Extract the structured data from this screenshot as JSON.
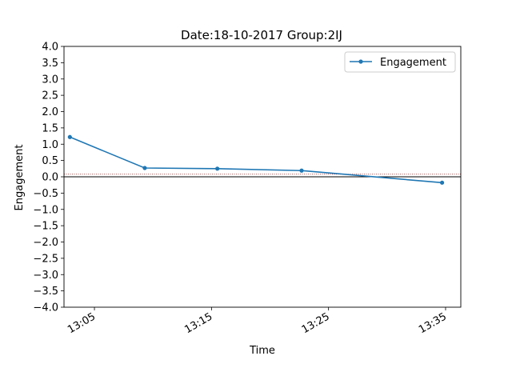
{
  "chart_data": {
    "type": "line",
    "title": "Date:18-10-2017 Group:2IJ",
    "xlabel": "Time",
    "ylabel": "Engagement",
    "x_ticks": [
      "13:05",
      "13:15",
      "13:25",
      "13:35"
    ],
    "x_tick_minutes": [
      785,
      795,
      805,
      815
    ],
    "xlim_minutes": [
      782.4,
      816.3
    ],
    "ylim": [
      -4.0,
      4.0
    ],
    "y_ticks": [
      -4.0,
      -3.5,
      -3.0,
      -2.5,
      -2.0,
      -1.5,
      -1.0,
      -0.5,
      0.0,
      0.5,
      1.0,
      1.5,
      2.0,
      2.5,
      3.0,
      3.5,
      4.0
    ],
    "y_tick_labels": [
      "−4.0",
      "−3.5",
      "−3.0",
      "−2.5",
      "−2.0",
      "−1.5",
      "−1.0",
      "−0.5",
      "0.0",
      "0.5",
      "1.0",
      "1.5",
      "2.0",
      "2.5",
      "3.0",
      "3.5",
      "4.0"
    ],
    "series": [
      {
        "name": "Engagement",
        "color": "#1f77b4",
        "x_minutes": [
          782.9,
          789.3,
          795.5,
          802.7,
          814.7
        ],
        "values": [
          1.22,
          0.27,
          0.25,
          0.19,
          -0.18
        ]
      }
    ],
    "reference_lines": [
      {
        "value": 0.0,
        "color": "#000000",
        "style": "solid"
      },
      {
        "value": 0.08,
        "color": "#8b1a1a",
        "style": "dotted"
      }
    ],
    "grid": false,
    "legend_position": "top-right"
  }
}
